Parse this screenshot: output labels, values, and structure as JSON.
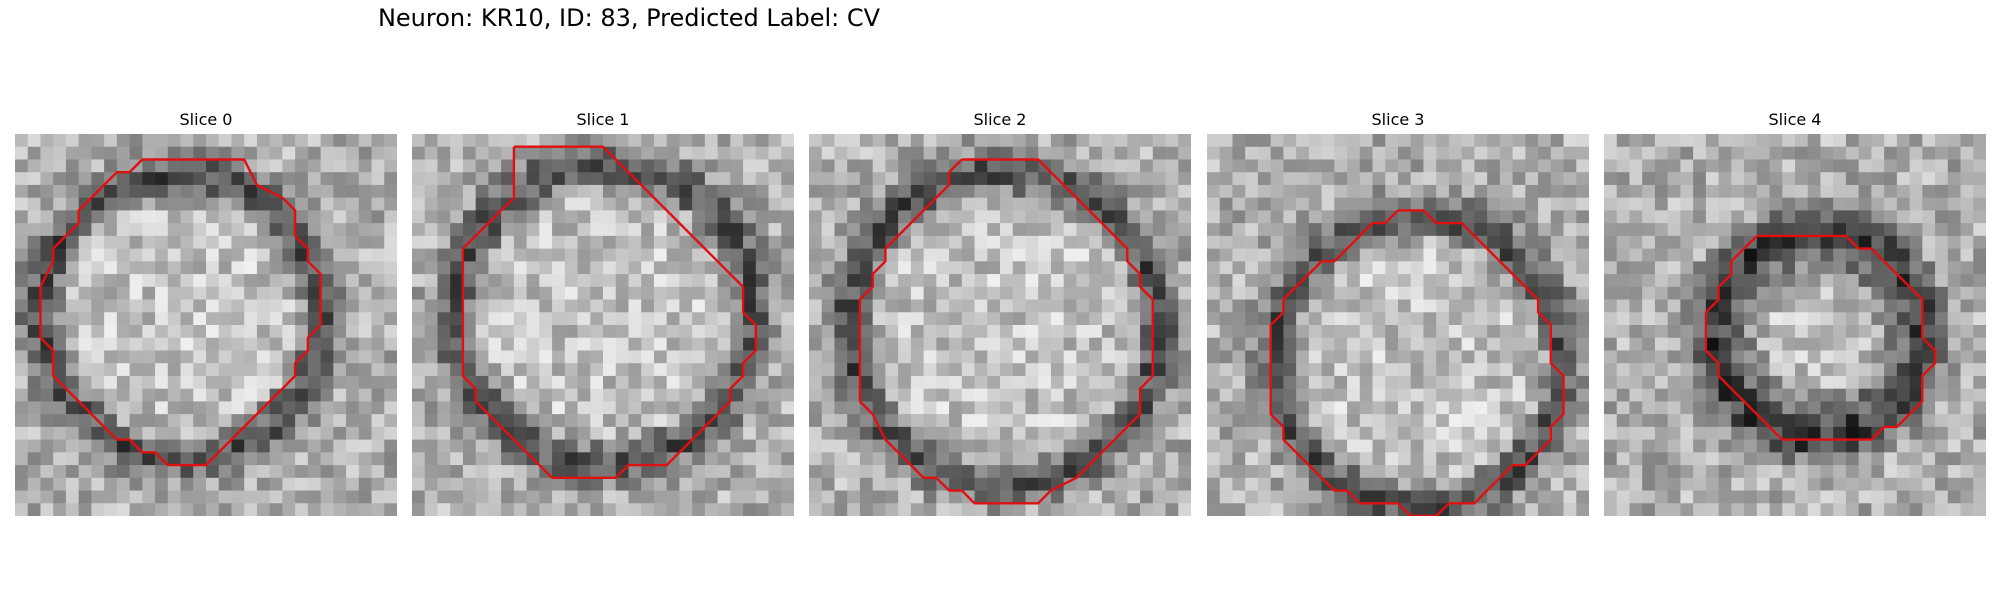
{
  "figure": {
    "title": "Neuron: KR10, ID: 83, Predicted Label: CV"
  },
  "panels": [
    {
      "title": "Slice 0",
      "contour_color": "#e01010",
      "contour_grid": [
        [
          10,
          2
        ],
        [
          18,
          2
        ],
        [
          19,
          4
        ],
        [
          21,
          5
        ],
        [
          22,
          6
        ],
        [
          22,
          8
        ],
        [
          23,
          9
        ],
        [
          23,
          10
        ],
        [
          24,
          11
        ],
        [
          24,
          12
        ],
        [
          24,
          15
        ],
        [
          23,
          16
        ],
        [
          23,
          17
        ],
        [
          22,
          18
        ],
        [
          22,
          19
        ],
        [
          21,
          20
        ],
        [
          20,
          21
        ],
        [
          19,
          22
        ],
        [
          18,
          23
        ],
        [
          17,
          24
        ],
        [
          16,
          25
        ],
        [
          15,
          26
        ],
        [
          12,
          26
        ],
        [
          11,
          25
        ],
        [
          10,
          25
        ],
        [
          9,
          24
        ],
        [
          8,
          24
        ],
        [
          7,
          23
        ],
        [
          6,
          22
        ],
        [
          5,
          21
        ],
        [
          4,
          20
        ],
        [
          3,
          19
        ],
        [
          3,
          17
        ],
        [
          2,
          16
        ],
        [
          2,
          12
        ],
        [
          3,
          10
        ],
        [
          3,
          9
        ],
        [
          4,
          8
        ],
        [
          5,
          7
        ],
        [
          5,
          6
        ],
        [
          6,
          5
        ],
        [
          7,
          4
        ],
        [
          8,
          3
        ],
        [
          9,
          3
        ],
        [
          10,
          2
        ]
      ]
    },
    {
      "title": "Slice 1",
      "contour_color": "#e01010",
      "contour_grid": [
        [
          8,
          1
        ],
        [
          15,
          1
        ],
        [
          16,
          2
        ],
        [
          17,
          3
        ],
        [
          18,
          4
        ],
        [
          19,
          5
        ],
        [
          20,
          6
        ],
        [
          21,
          7
        ],
        [
          22,
          8
        ],
        [
          23,
          9
        ],
        [
          24,
          10
        ],
        [
          25,
          11
        ],
        [
          26,
          12
        ],
        [
          26,
          14
        ],
        [
          27,
          15
        ],
        [
          27,
          17
        ],
        [
          26,
          18
        ],
        [
          26,
          19
        ],
        [
          25,
          20
        ],
        [
          25,
          21
        ],
        [
          24,
          22
        ],
        [
          23,
          23
        ],
        [
          22,
          24
        ],
        [
          21,
          25
        ],
        [
          20,
          26
        ],
        [
          17,
          26
        ],
        [
          16,
          27
        ],
        [
          11,
          27
        ],
        [
          10,
          26
        ],
        [
          9,
          25
        ],
        [
          8,
          24
        ],
        [
          7,
          23
        ],
        [
          6,
          22
        ],
        [
          5,
          21
        ],
        [
          5,
          20
        ],
        [
          4,
          19
        ],
        [
          4,
          15
        ],
        [
          4,
          14
        ],
        [
          4,
          10
        ],
        [
          4,
          9
        ],
        [
          5,
          8
        ],
        [
          6,
          7
        ],
        [
          7,
          6
        ],
        [
          8,
          5
        ],
        [
          8,
          4
        ],
        [
          8,
          3
        ],
        [
          8,
          1
        ]
      ]
    },
    {
      "title": "Slice 2",
      "contour_color": "#e01010",
      "contour_grid": [
        [
          12,
          2
        ],
        [
          18,
          2
        ],
        [
          19,
          3
        ],
        [
          20,
          4
        ],
        [
          21,
          5
        ],
        [
          22,
          6
        ],
        [
          23,
          7
        ],
        [
          24,
          8
        ],
        [
          25,
          9
        ],
        [
          25,
          10
        ],
        [
          26,
          11
        ],
        [
          26,
          12
        ],
        [
          27,
          13
        ],
        [
          27,
          19
        ],
        [
          26,
          20
        ],
        [
          26,
          22
        ],
        [
          25,
          23
        ],
        [
          24,
          24
        ],
        [
          23,
          25
        ],
        [
          22,
          26
        ],
        [
          21,
          27
        ],
        [
          19,
          28
        ],
        [
          18,
          29
        ],
        [
          13,
          29
        ],
        [
          12,
          28
        ],
        [
          11,
          28
        ],
        [
          10,
          27
        ],
        [
          9,
          27
        ],
        [
          8,
          26
        ],
        [
          7,
          25
        ],
        [
          6,
          24
        ],
        [
          5,
          22
        ],
        [
          4,
          21
        ],
        [
          4,
          19
        ],
        [
          4,
          13
        ],
        [
          5,
          12
        ],
        [
          5,
          11
        ],
        [
          6,
          10
        ],
        [
          6,
          9
        ],
        [
          7,
          8
        ],
        [
          8,
          7
        ],
        [
          9,
          6
        ],
        [
          10,
          5
        ],
        [
          11,
          4
        ],
        [
          11,
          3
        ],
        [
          12,
          2
        ]
      ]
    },
    {
      "title": "Slice 3",
      "contour_color": "#e01010",
      "contour_grid": [
        [
          15,
          6
        ],
        [
          17,
          6
        ],
        [
          18,
          7
        ],
        [
          20,
          7
        ],
        [
          21,
          8
        ],
        [
          22,
          9
        ],
        [
          23,
          10
        ],
        [
          24,
          11
        ],
        [
          25,
          12
        ],
        [
          26,
          13
        ],
        [
          26,
          14
        ],
        [
          27,
          15
        ],
        [
          27,
          18
        ],
        [
          28,
          19
        ],
        [
          28,
          22
        ],
        [
          27,
          23
        ],
        [
          27,
          24
        ],
        [
          26,
          25
        ],
        [
          25,
          26
        ],
        [
          24,
          26
        ],
        [
          23,
          27
        ],
        [
          22,
          28
        ],
        [
          21,
          29
        ],
        [
          19,
          29
        ],
        [
          18,
          30
        ],
        [
          16,
          30
        ],
        [
          15,
          29
        ],
        [
          12,
          29
        ],
        [
          11,
          28
        ],
        [
          10,
          28
        ],
        [
          9,
          27
        ],
        [
          8,
          26
        ],
        [
          7,
          25
        ],
        [
          6,
          24
        ],
        [
          6,
          23
        ],
        [
          5,
          22
        ],
        [
          5,
          15
        ],
        [
          6,
          14
        ],
        [
          6,
          13
        ],
        [
          7,
          12
        ],
        [
          8,
          11
        ],
        [
          9,
          10
        ],
        [
          10,
          10
        ],
        [
          11,
          9
        ],
        [
          12,
          8
        ],
        [
          13,
          7
        ],
        [
          14,
          7
        ],
        [
          15,
          6
        ]
      ]
    },
    {
      "title": "Slice 4",
      "contour_color": "#e01010",
      "contour_grid": [
        [
          12,
          8
        ],
        [
          19,
          8
        ],
        [
          20,
          9
        ],
        [
          21,
          9
        ],
        [
          22,
          10
        ],
        [
          23,
          11
        ],
        [
          24,
          12
        ],
        [
          25,
          13
        ],
        [
          25,
          16
        ],
        [
          26,
          17
        ],
        [
          26,
          18
        ],
        [
          25,
          19
        ],
        [
          25,
          21
        ],
        [
          24,
          22
        ],
        [
          23,
          23
        ],
        [
          22,
          23
        ],
        [
          21,
          24
        ],
        [
          14,
          24
        ],
        [
          13,
          23
        ],
        [
          12,
          22
        ],
        [
          11,
          21
        ],
        [
          10,
          20
        ],
        [
          9,
          19
        ],
        [
          9,
          18
        ],
        [
          8,
          17
        ],
        [
          8,
          14
        ],
        [
          9,
          13
        ],
        [
          9,
          12
        ],
        [
          10,
          11
        ],
        [
          10,
          10
        ],
        [
          11,
          9
        ],
        [
          12,
          8
        ]
      ]
    }
  ]
}
